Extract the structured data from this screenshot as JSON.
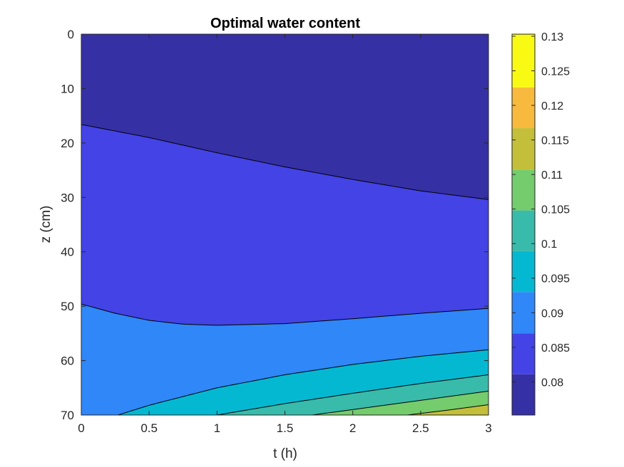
{
  "chart_data": {
    "type": "contour",
    "title": "Optimal water content",
    "xlabel": "t (h)",
    "ylabel": "z (cm)",
    "xlim": [
      0,
      3
    ],
    "ylim": [
      0,
      70
    ],
    "y_reversed": true,
    "x_ticks": [
      0,
      0.5,
      1,
      1.5,
      2,
      2.5,
      3
    ],
    "x_tick_labels": [
      "0",
      "0.5",
      "1",
      "1.5",
      "2",
      "2.5",
      "3"
    ],
    "y_ticks": [
      0,
      10,
      20,
      30,
      40,
      50,
      60,
      70
    ],
    "y_tick_labels": [
      "0",
      "10",
      "20",
      "30",
      "40",
      "50",
      "60",
      "70"
    ],
    "colorbar": {
      "limits": [
        0.0752,
        0.1303
      ],
      "ticks": [
        0.08,
        0.085,
        0.09,
        0.095,
        0.1,
        0.105,
        0.11,
        0.115,
        0.12,
        0.125,
        0.13
      ],
      "tick_labels": [
        "0.08",
        "0.085",
        "0.09",
        "0.095",
        "0.1",
        "0.105",
        "0.11",
        "0.115",
        "0.12",
        "0.125",
        "0.13"
      ],
      "colormap": "parula"
    },
    "levels": [
      {
        "range": [
          0.0752,
          0.0811
        ],
        "color": "#3630a5"
      },
      {
        "range": [
          0.0811,
          0.087
        ],
        "color": "#4343e6"
      },
      {
        "range": [
          0.087,
          0.093
        ],
        "color": "#2f87f8"
      },
      {
        "range": [
          0.093,
          0.0989
        ],
        "color": "#05b8d2"
      },
      {
        "range": [
          0.0989,
          0.1048
        ],
        "color": "#38bbaa"
      },
      {
        "range": [
          0.1048,
          0.1107
        ],
        "color": "#74cc6c"
      },
      {
        "range": [
          0.1107,
          0.1167
        ],
        "color": "#c3bf3a"
      },
      {
        "range": [
          0.1167,
          0.1226
        ],
        "color": "#f8ba3e"
      },
      {
        "range": [
          0.1226,
          0.1303
        ],
        "color": "#f9fa13"
      }
    ],
    "contour_lines": [
      {
        "t": [
          0,
          0.5,
          1,
          1.5,
          2,
          2.5,
          3
        ],
        "z": [
          16.6,
          19.0,
          21.8,
          24.4,
          26.7,
          28.8,
          30.4
        ]
      },
      {
        "t": [
          0,
          0.25,
          0.5,
          0.75,
          1,
          1.5,
          2,
          2.5,
          3
        ],
        "z": [
          49.6,
          51.3,
          52.6,
          53.3,
          53.5,
          53.2,
          52.3,
          51.3,
          50.4
        ]
      },
      {
        "t": [
          0.27,
          0.5,
          1,
          1.5,
          2,
          2.5,
          3
        ],
        "z": [
          70.0,
          68.2,
          65.0,
          62.6,
          60.7,
          59.2,
          58.0
        ]
      },
      {
        "t": [
          1.0,
          1.5,
          2,
          2.5,
          3
        ],
        "z": [
          70.0,
          67.9,
          66.0,
          64.2,
          62.6
        ]
      },
      {
        "t": [
          1.7,
          2,
          2.5,
          3
        ],
        "z": [
          70.0,
          69.0,
          67.3,
          65.6
        ]
      },
      {
        "t": [
          2.4,
          2.7,
          3
        ],
        "z": [
          70.0,
          69.1,
          68.1
        ]
      }
    ]
  }
}
